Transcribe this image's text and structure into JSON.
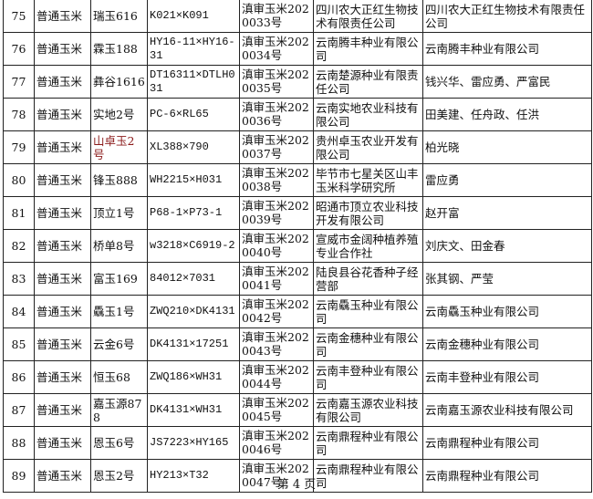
{
  "rows": [
    {
      "no": "75",
      "type": "普通玉米",
      "name": "瑞玉616",
      "pedigree": "K021×K091",
      "approval": "滇审玉米2020033号",
      "applicant": "四川农大正红生物技术有限责任公司",
      "breeder": "四川农大正红生物技术有限责任公司"
    },
    {
      "no": "76",
      "type": "普通玉米",
      "name": "霖玉188",
      "pedigree": "HY16-11×HY16-31",
      "approval": "滇审玉米2020034号",
      "applicant": "云南腾丰种业有限公司",
      "breeder": "云南腾丰种业有限公司"
    },
    {
      "no": "77",
      "type": "普通玉米",
      "name": "彝谷1616",
      "pedigree": "DT16311×DTLH031",
      "approval": "滇审玉米2020035号",
      "applicant": "云南楚源种业有限责任公司",
      "breeder": "钱兴华、雷应勇、严富民"
    },
    {
      "no": "78",
      "type": "普通玉米",
      "name": "实地2号",
      "pedigree": "PC-6×RL65",
      "approval": "滇审玉米2020036号",
      "applicant": "云南实地农业科技有限公司",
      "breeder": "田美建、任舟政、任洪"
    },
    {
      "no": "79",
      "type": "普通玉米",
      "name": "山卓玉2号",
      "pedigree": "XL388×790",
      "approval": "滇审玉米2020037号",
      "applicant": "贵州卓玉农业开发有限公司",
      "breeder": "柏光晓",
      "highlight": true
    },
    {
      "no": "80",
      "type": "普通玉米",
      "name": "锋玉888",
      "pedigree": "WH2215×H031",
      "approval": "滇审玉米2020038号",
      "applicant": "毕节市七星关区山丰玉米科学研究所",
      "breeder": "雷应勇"
    },
    {
      "no": "81",
      "type": "普通玉米",
      "name": "顶立1号",
      "pedigree": "P68-1×P73-1",
      "approval": "滇审玉米2020039号",
      "applicant": "昭通市顶立农业科技开发有限公司",
      "breeder": "赵开富"
    },
    {
      "no": "82",
      "type": "普通玉米",
      "name": "桥单8号",
      "pedigree": "w3218×C6919-2",
      "approval": "滇审玉米2020040号",
      "applicant": "宣威市金阔种植养殖专业合作社",
      "breeder": "刘庆文、田金春"
    },
    {
      "no": "83",
      "type": "普通玉米",
      "name": "富玉169",
      "pedigree": "84012×7031",
      "approval": "滇审玉米2020041号",
      "applicant": "陆良县谷花香种子经营部",
      "breeder": "张其钢、严莹"
    },
    {
      "no": "84",
      "type": "普通玉米",
      "name": "驫玉1号",
      "pedigree": "ZWQ210×DK4131",
      "approval": "滇审玉米2020042号",
      "applicant": "云南驫玉种业有限公司",
      "breeder": "云南驫玉种业有限公司"
    },
    {
      "no": "85",
      "type": "普通玉米",
      "name": "云金6号",
      "pedigree": "DK4131×17251",
      "approval": "滇审玉米2020043号",
      "applicant": "云南金穗种业有限公司",
      "breeder": "云南金穗种业有限公司"
    },
    {
      "no": "86",
      "type": "普通玉米",
      "name": "恒玉68",
      "pedigree": "ZWQ186×WH31",
      "approval": "滇审玉米2020044号",
      "applicant": "云南丰登种业有限公司",
      "breeder": "云南丰登种业有限公司"
    },
    {
      "no": "87",
      "type": "普通玉米",
      "name": "嘉玉源878",
      "pedigree": "DK4131×WH31",
      "approval": "滇审玉米2020045号",
      "applicant": "云南嘉玉源农业科技有限公司",
      "breeder": "云南嘉玉源农业科技有限公司"
    },
    {
      "no": "88",
      "type": "普通玉米",
      "name": "恩玉6号",
      "pedigree": "JS7223×HY165",
      "approval": "滇审玉米2020046号",
      "applicant": "云南鼎程种业有限公司",
      "breeder": "云南鼎程种业有限公司"
    },
    {
      "no": "89",
      "type": "普通玉米",
      "name": "恩玉2号",
      "pedigree": "HY213×T32",
      "approval": "滇审玉米2020047号",
      "applicant": "云南鼎程种业有限公司",
      "breeder": "云南鼎程种业有限公司"
    }
  ],
  "highlight_color": "#8b1a1a",
  "footer": "第 4 页"
}
